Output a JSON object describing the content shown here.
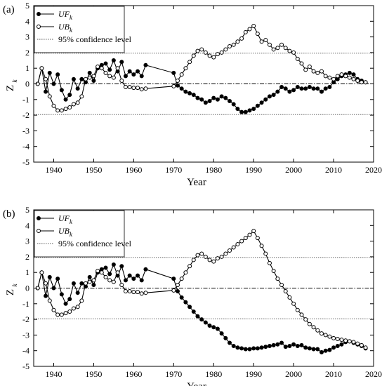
{
  "chart_data": [
    {
      "type": "line",
      "panel_label": "(a)",
      "xlabel": "Year",
      "ylabel": "Z",
      "ylabel_sub": "k",
      "xlim": [
        1935,
        2020
      ],
      "ylim": [
        -5,
        5
      ],
      "xticks": [
        1940,
        1950,
        1960,
        1970,
        1980,
        1990,
        2000,
        2010,
        2020
      ],
      "yticks": [
        -5,
        -4,
        -3,
        -2,
        -1,
        0,
        1,
        2,
        3,
        4,
        5
      ],
      "confidence_level": 1.96,
      "legend": [
        {
          "main": "UF",
          "sub": "k",
          "marker": "filled"
        },
        {
          "main": "UB",
          "sub": "k",
          "marker": "open"
        },
        {
          "text": "95% confidence level",
          "marker": "dotted"
        }
      ],
      "legend_placement": "top-left",
      "series": [
        {
          "name": "UF_k",
          "marker": "filled",
          "x": [
            1936,
            1937,
            1938,
            1939,
            1940,
            1941,
            1942,
            1943,
            1944,
            1945,
            1946,
            1947,
            1948,
            1949,
            1950,
            1951,
            1952,
            1953,
            1954,
            1955,
            1956,
            1957,
            1958,
            1959,
            1960,
            1961,
            1962,
            1963,
            1970,
            1971,
            1972,
            1973,
            1974,
            1975,
            1976,
            1977,
            1978,
            1979,
            1980,
            1981,
            1982,
            1983,
            1984,
            1985,
            1986,
            1987,
            1988,
            1989,
            1990,
            1991,
            1992,
            1993,
            1994,
            1995,
            1996,
            1997,
            1998,
            1999,
            2000,
            2001,
            2002,
            2003,
            2004,
            2005,
            2006,
            2007,
            2008,
            2009,
            2010,
            2011,
            2012,
            2013,
            2014,
            2015,
            2016,
            2017,
            2018
          ],
          "y": [
            0,
            1.0,
            -0.5,
            0.7,
            0,
            0.6,
            -0.4,
            -1.0,
            -0.7,
            0.3,
            -0.3,
            0.3,
            0.1,
            0.7,
            0.2,
            1.0,
            1.2,
            1.3,
            0.9,
            1.5,
            0.8,
            1.4,
            0.5,
            0.8,
            0.6,
            0.8,
            0.5,
            1.2,
            0.7,
            -0.1,
            -0.3,
            -0.5,
            -0.6,
            -0.7,
            -0.9,
            -1.0,
            -1.2,
            -1.1,
            -0.9,
            -1.0,
            -0.8,
            -0.9,
            -1.1,
            -1.3,
            -1.6,
            -1.8,
            -1.8,
            -1.7,
            -1.6,
            -1.4,
            -1.2,
            -1.0,
            -0.8,
            -0.7,
            -0.5,
            -0.2,
            -0.3,
            -0.5,
            -0.4,
            -0.2,
            -0.3,
            -0.3,
            -0.2,
            -0.3,
            -0.3,
            -0.5,
            -0.3,
            -0.2,
            0.1,
            0.3,
            0.5,
            0.6,
            0.7,
            0.6,
            0.3,
            0.2,
            0.1
          ]
        },
        {
          "name": "UB_k",
          "marker": "open",
          "x": [
            1936,
            1937,
            1938,
            1939,
            1940,
            1941,
            1942,
            1943,
            1944,
            1945,
            1946,
            1947,
            1948,
            1949,
            1950,
            1951,
            1952,
            1953,
            1954,
            1955,
            1956,
            1957,
            1958,
            1959,
            1960,
            1961,
            1962,
            1963,
            1970,
            1971,
            1972,
            1973,
            1974,
            1975,
            1976,
            1977,
            1978,
            1979,
            1980,
            1981,
            1982,
            1983,
            1984,
            1985,
            1986,
            1987,
            1988,
            1989,
            1990,
            1991,
            1992,
            1993,
            1994,
            1995,
            1996,
            1997,
            1998,
            1999,
            2000,
            2001,
            2002,
            2003,
            2004,
            2005,
            2006,
            2007,
            2008,
            2009,
            2010,
            2011,
            2012,
            2013,
            2014,
            2015,
            2016,
            2017,
            2018
          ],
          "y": [
            0.0,
            1.0,
            0.3,
            -0.8,
            -1.4,
            -1.7,
            -1.7,
            -1.6,
            -1.5,
            -1.3,
            -1.2,
            -0.8,
            0.3,
            0.4,
            0.5,
            1.1,
            1.0,
            0.7,
            0.5,
            0.4,
            1.0,
            0.2,
            -0.2,
            -0.2,
            -0.25,
            -0.25,
            -0.35,
            -0.3,
            -0.15,
            0.2,
            0.6,
            1.0,
            1.4,
            1.8,
            2.1,
            2.2,
            2.0,
            1.8,
            1.7,
            1.9,
            2.0,
            2.2,
            2.4,
            2.5,
            2.7,
            2.9,
            3.3,
            3.5,
            3.7,
            3.2,
            2.7,
            2.8,
            2.5,
            2.2,
            2.3,
            2.5,
            2.3,
            2.1,
            2.0,
            1.6,
            1.3,
            0.9,
            1.1,
            0.8,
            0.7,
            0.8,
            0.5,
            0.4,
            0.3,
            0.5,
            0.6,
            0.5,
            0.4,
            0.3,
            0.2,
            0.1,
            0.1
          ]
        }
      ]
    },
    {
      "type": "line",
      "panel_label": "(b)",
      "xlabel": "Year",
      "ylabel": "Z",
      "ylabel_sub": "k",
      "xlim": [
        1935,
        2020
      ],
      "ylim": [
        -5,
        5
      ],
      "xticks": [
        1940,
        1950,
        1960,
        1970,
        1980,
        1990,
        2000,
        2010,
        2020
      ],
      "yticks": [
        -5,
        -4,
        -3,
        -2,
        -1,
        0,
        1,
        2,
        3,
        4,
        5
      ],
      "confidence_level": 1.96,
      "legend": [
        {
          "main": "UF",
          "sub": "k",
          "marker": "filled"
        },
        {
          "main": "UB",
          "sub": "k",
          "marker": "open"
        },
        {
          "text": "95% confidence level",
          "marker": "dotted"
        }
      ],
      "legend_placement": "top-left",
      "series": [
        {
          "name": "UF_k",
          "marker": "filled",
          "x": [
            1936,
            1937,
            1938,
            1939,
            1940,
            1941,
            1942,
            1943,
            1944,
            1945,
            1946,
            1947,
            1948,
            1949,
            1950,
            1951,
            1952,
            1953,
            1954,
            1955,
            1956,
            1957,
            1958,
            1959,
            1960,
            1961,
            1962,
            1963,
            1970,
            1971,
            1972,
            1973,
            1974,
            1975,
            1976,
            1977,
            1978,
            1979,
            1980,
            1981,
            1982,
            1983,
            1984,
            1985,
            1986,
            1987,
            1988,
            1989,
            1990,
            1991,
            1992,
            1993,
            1994,
            1995,
            1996,
            1997,
            1998,
            1999,
            2000,
            2001,
            2002,
            2003,
            2004,
            2005,
            2006,
            2007,
            2008,
            2009,
            2010,
            2011,
            2012,
            2013,
            2014,
            2015,
            2016,
            2017,
            2018
          ],
          "y": [
            0,
            1.0,
            -0.5,
            0.7,
            0,
            0.6,
            -0.4,
            -1.0,
            -0.7,
            0.3,
            -0.3,
            0.3,
            0.1,
            0.7,
            0.2,
            1.0,
            1.2,
            1.3,
            0.9,
            1.5,
            0.8,
            1.4,
            0.5,
            0.8,
            0.6,
            0.8,
            0.5,
            1.2,
            0.6,
            -0.2,
            -0.6,
            -0.9,
            -1.2,
            -1.5,
            -1.8,
            -2.0,
            -2.2,
            -2.4,
            -2.5,
            -2.6,
            -2.9,
            -3.2,
            -3.5,
            -3.7,
            -3.8,
            -3.85,
            -3.9,
            -3.9,
            -3.85,
            -3.85,
            -3.8,
            -3.75,
            -3.7,
            -3.65,
            -3.6,
            -3.5,
            -3.75,
            -3.7,
            -3.6,
            -3.7,
            -3.65,
            -3.8,
            -3.85,
            -3.9,
            -3.9,
            -4.1,
            -4.0,
            -3.95,
            -3.8,
            -3.7,
            -3.6,
            -3.45,
            -3.4,
            -3.5,
            -3.6,
            -3.7,
            -3.85
          ]
        },
        {
          "name": "UB_k",
          "marker": "open",
          "x": [
            1936,
            1937,
            1938,
            1939,
            1940,
            1941,
            1942,
            1943,
            1944,
            1945,
            1946,
            1947,
            1948,
            1949,
            1950,
            1951,
            1952,
            1953,
            1954,
            1955,
            1956,
            1957,
            1958,
            1959,
            1960,
            1961,
            1962,
            1963,
            1970,
            1971,
            1972,
            1973,
            1974,
            1975,
            1976,
            1977,
            1978,
            1979,
            1980,
            1981,
            1982,
            1983,
            1984,
            1985,
            1986,
            1987,
            1988,
            1989,
            1990,
            1991,
            1992,
            1993,
            1994,
            1995,
            1996,
            1997,
            1998,
            1999,
            2000,
            2001,
            2002,
            2003,
            2004,
            2005,
            2006,
            2007,
            2008,
            2009,
            2010,
            2011,
            2012,
            2013,
            2014,
            2015,
            2016,
            2017,
            2018
          ],
          "y": [
            0.0,
            1.0,
            0.3,
            -0.8,
            -1.4,
            -1.7,
            -1.7,
            -1.6,
            -1.5,
            -1.3,
            -1.2,
            -0.8,
            0.3,
            0.4,
            0.5,
            1.1,
            1.0,
            0.7,
            0.5,
            0.4,
            1.0,
            0.2,
            -0.2,
            -0.2,
            -0.25,
            -0.25,
            -0.35,
            -0.3,
            -0.15,
            0.2,
            0.6,
            1.0,
            1.4,
            1.8,
            2.1,
            2.2,
            2.0,
            1.8,
            1.7,
            1.9,
            2.0,
            2.2,
            2.4,
            2.6,
            2.8,
            3.0,
            3.2,
            3.4,
            3.65,
            3.2,
            2.7,
            2.2,
            1.6,
            1.1,
            0.6,
            0.2,
            -0.2,
            -0.6,
            -1.0,
            -1.4,
            -1.7,
            -2.0,
            -2.3,
            -2.5,
            -2.7,
            -2.9,
            -3.0,
            -3.1,
            -3.2,
            -3.25,
            -3.3,
            -3.35,
            -3.4,
            -3.45,
            -3.55,
            -3.65,
            -3.8
          ]
        }
      ]
    }
  ]
}
